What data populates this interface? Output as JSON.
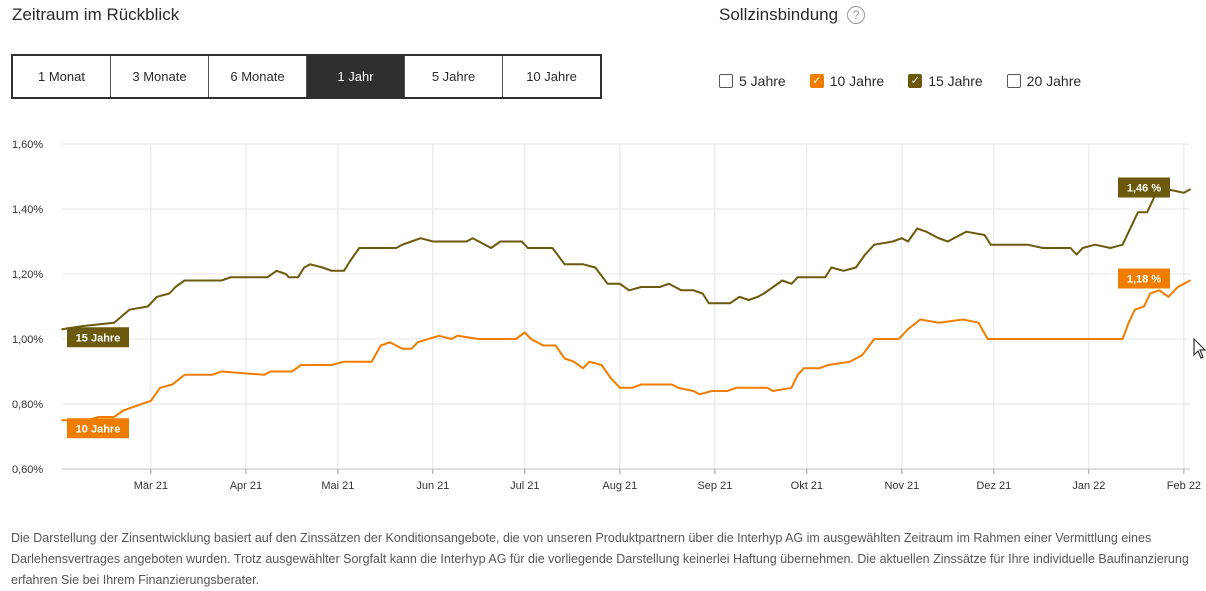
{
  "header": {
    "title": "Zeitraum im Rückblick"
  },
  "period_tabs": [
    {
      "label": "1 Monat",
      "active": false
    },
    {
      "label": "3 Monate",
      "active": false
    },
    {
      "label": "6 Monate",
      "active": false
    },
    {
      "label": "1 Jahr",
      "active": true
    },
    {
      "label": "5 Jahre",
      "active": false
    },
    {
      "label": "10 Jahre",
      "active": false
    }
  ],
  "sollzins": {
    "title": "Sollzinsbindung",
    "help_icon": "question-circle-icon",
    "options": [
      {
        "label": "5 Jahre",
        "checked": false,
        "color": "#ffffff"
      },
      {
        "label": "10 Jahre",
        "checked": true,
        "color": "#f07d00"
      },
      {
        "label": "15 Jahre",
        "checked": true,
        "color": "#6b5a0d"
      },
      {
        "label": "20 Jahre",
        "checked": false,
        "color": "#ffffff"
      }
    ]
  },
  "chart_data": {
    "type": "line",
    "title": "",
    "xlabel": "",
    "ylabel": "",
    "ylim": [
      0.6,
      1.6
    ],
    "grid": true,
    "x_range": [
      "2021-01-31",
      "2022-02-03"
    ],
    "y_ticks": [
      "1,60%",
      "1,40%",
      "1,20%",
      "1,00%",
      "0,80%",
      "0,60%"
    ],
    "x_ticks": [
      {
        "label": "Mär 21",
        "date": "2021-03-01"
      },
      {
        "label": "Apr 21",
        "date": "2021-04-01"
      },
      {
        "label": "Mai 21",
        "date": "2021-05-01"
      },
      {
        "label": "Jun 21",
        "date": "2021-06-01"
      },
      {
        "label": "Jul 21",
        "date": "2021-07-01"
      },
      {
        "label": "Aug 21",
        "date": "2021-08-01"
      },
      {
        "label": "Sep 21",
        "date": "2021-09-01"
      },
      {
        "label": "Okt 21",
        "date": "2021-10-01"
      },
      {
        "label": "Nov 21",
        "date": "2021-11-01"
      },
      {
        "label": "Dez 21",
        "date": "2021-12-01"
      },
      {
        "label": "Jan 22",
        "date": "2022-01-01"
      },
      {
        "label": "Feb 22",
        "date": "2022-02-01"
      }
    ],
    "series": [
      {
        "name": "15 Jahre",
        "color": "#6b5a0d",
        "end_label": "1,46 %",
        "points": [
          [
            "2021-01-31",
            1.03
          ],
          [
            "2021-02-07",
            1.04
          ],
          [
            "2021-02-17",
            1.05
          ],
          [
            "2021-02-22",
            1.09
          ],
          [
            "2021-02-28",
            1.1
          ],
          [
            "2021-03-03",
            1.13
          ],
          [
            "2021-03-07",
            1.14
          ],
          [
            "2021-03-09",
            1.16
          ],
          [
            "2021-03-12",
            1.18
          ],
          [
            "2021-03-24",
            1.18
          ],
          [
            "2021-03-27",
            1.19
          ],
          [
            "2021-04-08",
            1.19
          ],
          [
            "2021-04-11",
            1.21
          ],
          [
            "2021-04-14",
            1.2
          ],
          [
            "2021-04-15",
            1.19
          ],
          [
            "2021-04-18",
            1.19
          ],
          [
            "2021-04-20",
            1.22
          ],
          [
            "2021-04-22",
            1.23
          ],
          [
            "2021-04-26",
            1.22
          ],
          [
            "2021-04-29",
            1.21
          ],
          [
            "2021-05-03",
            1.21
          ],
          [
            "2021-05-05",
            1.24
          ],
          [
            "2021-05-08",
            1.28
          ],
          [
            "2021-05-20",
            1.28
          ],
          [
            "2021-05-22",
            1.29
          ],
          [
            "2021-05-25",
            1.3
          ],
          [
            "2021-05-28",
            1.31
          ],
          [
            "2021-06-01",
            1.3
          ],
          [
            "2021-06-12",
            1.3
          ],
          [
            "2021-06-14",
            1.31
          ],
          [
            "2021-06-16",
            1.3
          ],
          [
            "2021-06-20",
            1.28
          ],
          [
            "2021-06-23",
            1.3
          ],
          [
            "2021-06-30",
            1.3
          ],
          [
            "2021-07-02",
            1.28
          ],
          [
            "2021-07-10",
            1.28
          ],
          [
            "2021-07-14",
            1.23
          ],
          [
            "2021-07-20",
            1.23
          ],
          [
            "2021-07-24",
            1.22
          ],
          [
            "2021-07-28",
            1.17
          ],
          [
            "2021-08-01",
            1.17
          ],
          [
            "2021-08-04",
            1.15
          ],
          [
            "2021-08-08",
            1.16
          ],
          [
            "2021-08-14",
            1.16
          ],
          [
            "2021-08-17",
            1.17
          ],
          [
            "2021-08-21",
            1.15
          ],
          [
            "2021-08-25",
            1.15
          ],
          [
            "2021-08-28",
            1.14
          ],
          [
            "2021-08-30",
            1.11
          ],
          [
            "2021-09-06",
            1.11
          ],
          [
            "2021-09-09",
            1.13
          ],
          [
            "2021-09-12",
            1.12
          ],
          [
            "2021-09-15",
            1.13
          ],
          [
            "2021-09-17",
            1.14
          ],
          [
            "2021-09-20",
            1.16
          ],
          [
            "2021-09-23",
            1.18
          ],
          [
            "2021-09-26",
            1.17
          ],
          [
            "2021-09-28",
            1.19
          ],
          [
            "2021-10-07",
            1.19
          ],
          [
            "2021-10-09",
            1.22
          ],
          [
            "2021-10-13",
            1.21
          ],
          [
            "2021-10-17",
            1.22
          ],
          [
            "2021-10-20",
            1.26
          ],
          [
            "2021-10-23",
            1.29
          ],
          [
            "2021-10-29",
            1.3
          ],
          [
            "2021-11-01",
            1.31
          ],
          [
            "2021-11-03",
            1.3
          ],
          [
            "2021-11-06",
            1.34
          ],
          [
            "2021-11-09",
            1.33
          ],
          [
            "2021-11-13",
            1.31
          ],
          [
            "2021-11-16",
            1.3
          ],
          [
            "2021-11-20",
            1.32
          ],
          [
            "2021-11-22",
            1.33
          ],
          [
            "2021-11-28",
            1.32
          ],
          [
            "2021-11-30",
            1.29
          ],
          [
            "2021-12-12",
            1.29
          ],
          [
            "2021-12-17",
            1.28
          ],
          [
            "2021-12-26",
            1.28
          ],
          [
            "2021-12-28",
            1.26
          ],
          [
            "2021-12-30",
            1.28
          ],
          [
            "2022-01-03",
            1.29
          ],
          [
            "2022-01-08",
            1.28
          ],
          [
            "2022-01-12",
            1.29
          ],
          [
            "2022-01-15",
            1.35
          ],
          [
            "2022-01-17",
            1.39
          ],
          [
            "2022-01-20",
            1.39
          ],
          [
            "2022-01-23",
            1.45
          ],
          [
            "2022-01-27",
            1.46
          ],
          [
            "2022-02-01",
            1.45
          ],
          [
            "2022-02-03",
            1.46
          ]
        ]
      },
      {
        "name": "10 Jahre",
        "color": "#f07d00",
        "end_label": "1,18 %",
        "points": [
          [
            "2021-01-31",
            0.75
          ],
          [
            "2021-02-08",
            0.75
          ],
          [
            "2021-02-12",
            0.76
          ],
          [
            "2021-02-17",
            0.76
          ],
          [
            "2021-02-20",
            0.78
          ],
          [
            "2021-02-26",
            0.8
          ],
          [
            "2021-03-01",
            0.81
          ],
          [
            "2021-03-04",
            0.85
          ],
          [
            "2021-03-08",
            0.86
          ],
          [
            "2021-03-12",
            0.89
          ],
          [
            "2021-03-21",
            0.89
          ],
          [
            "2021-03-24",
            0.9
          ],
          [
            "2021-04-07",
            0.89
          ],
          [
            "2021-04-09",
            0.9
          ],
          [
            "2021-04-16",
            0.9
          ],
          [
            "2021-04-19",
            0.92
          ],
          [
            "2021-04-29",
            0.92
          ],
          [
            "2021-05-03",
            0.93
          ],
          [
            "2021-05-12",
            0.93
          ],
          [
            "2021-05-15",
            0.98
          ],
          [
            "2021-05-18",
            0.99
          ],
          [
            "2021-05-22",
            0.97
          ],
          [
            "2021-05-25",
            0.97
          ],
          [
            "2021-05-27",
            0.99
          ],
          [
            "2021-06-03",
            1.01
          ],
          [
            "2021-06-07",
            1.0
          ],
          [
            "2021-06-09",
            1.01
          ],
          [
            "2021-06-16",
            1.0
          ],
          [
            "2021-06-21",
            1.0
          ],
          [
            "2021-06-28",
            1.0
          ],
          [
            "2021-07-01",
            1.02
          ],
          [
            "2021-07-03",
            1.0
          ],
          [
            "2021-07-07",
            0.98
          ],
          [
            "2021-07-11",
            0.98
          ],
          [
            "2021-07-14",
            0.94
          ],
          [
            "2021-07-17",
            0.93
          ],
          [
            "2021-07-20",
            0.91
          ],
          [
            "2021-07-22",
            0.93
          ],
          [
            "2021-07-26",
            0.92
          ],
          [
            "2021-07-29",
            0.88
          ],
          [
            "2021-08-01",
            0.85
          ],
          [
            "2021-08-05",
            0.85
          ],
          [
            "2021-08-08",
            0.86
          ],
          [
            "2021-08-18",
            0.86
          ],
          [
            "2021-08-20",
            0.85
          ],
          [
            "2021-08-25",
            0.84
          ],
          [
            "2021-08-27",
            0.83
          ],
          [
            "2021-08-31",
            0.84
          ],
          [
            "2021-09-05",
            0.84
          ],
          [
            "2021-09-08",
            0.85
          ],
          [
            "2021-09-14",
            0.85
          ],
          [
            "2021-09-18",
            0.85
          ],
          [
            "2021-09-20",
            0.84
          ],
          [
            "2021-09-26",
            0.85
          ],
          [
            "2021-09-28",
            0.89
          ],
          [
            "2021-09-30",
            0.91
          ],
          [
            "2021-10-05",
            0.91
          ],
          [
            "2021-10-08",
            0.92
          ],
          [
            "2021-10-15",
            0.93
          ],
          [
            "2021-10-19",
            0.95
          ],
          [
            "2021-10-23",
            1.0
          ],
          [
            "2021-10-31",
            1.0
          ],
          [
            "2021-11-03",
            1.03
          ],
          [
            "2021-11-07",
            1.06
          ],
          [
            "2021-11-13",
            1.05
          ],
          [
            "2021-11-21",
            1.06
          ],
          [
            "2021-11-26",
            1.05
          ],
          [
            "2021-11-29",
            1.0
          ],
          [
            "2021-12-15",
            1.0
          ],
          [
            "2021-12-21",
            1.0
          ],
          [
            "2021-12-28",
            1.0
          ],
          [
            "2022-01-02",
            1.0
          ],
          [
            "2022-01-08",
            1.0
          ],
          [
            "2022-01-10",
            1.0
          ],
          [
            "2022-01-12",
            1.0
          ],
          [
            "2022-01-14",
            1.05
          ],
          [
            "2022-01-16",
            1.09
          ],
          [
            "2022-01-19",
            1.1
          ],
          [
            "2022-01-21",
            1.14
          ],
          [
            "2022-01-24",
            1.15
          ],
          [
            "2022-01-27",
            1.13
          ],
          [
            "2022-01-30",
            1.16
          ],
          [
            "2022-02-01",
            1.17
          ],
          [
            "2022-02-03",
            1.18
          ]
        ]
      }
    ],
    "start_labels": [
      {
        "series": "15 Jahre",
        "label": "15 Jahre"
      },
      {
        "series": "10 Jahre",
        "label": "10 Jahre"
      }
    ]
  },
  "footnote": "Die Darstellung der Zinsentwicklung basiert auf den Zinssätzen der Konditionsangebote, die von unseren Produktpartnern über die Interhyp AG im ausgewählten Zeitraum im Rahmen einer Vermittlung eines Darlehensvertrages angeboten wurden. Trotz ausgewählter Sorgfalt kann die Interhyp AG für die vorliegende Darstellung keinerlei Haftung übernehmen. Die aktuellen Zinssätze für Ihre individuelle Baufinanzierung erfahren Sie bei Ihrem Finanzierungsberater."
}
